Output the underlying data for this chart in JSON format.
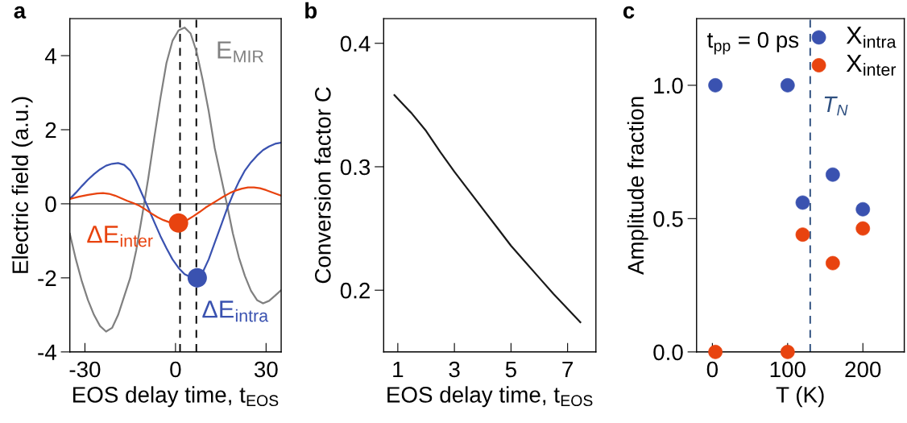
{
  "chart_data": [
    {
      "type": "line",
      "title": "a",
      "xlabel": "EOS delay time, t$_{EOS}$",
      "ylabel": "Electric field (a.u.)",
      "xlim": [
        -35,
        35
      ],
      "ylim": [
        -4,
        5
      ],
      "xticks": [
        -30,
        0,
        30
      ],
      "yticks": [
        -4,
        -2,
        0,
        2,
        4
      ],
      "grid": false,
      "legend": false,
      "series": [
        {
          "type": "line",
          "name": "E$_{MIR}$",
          "color": "#808080",
          "x": [
            -35,
            -33,
            -31,
            -29,
            -27,
            -25,
            -23,
            -21,
            -19,
            -17,
            -15,
            -13,
            -11,
            -9,
            -7,
            -5,
            -3,
            -1,
            1,
            3,
            5,
            7,
            9,
            11,
            13,
            15,
            17,
            19,
            21,
            23,
            25,
            27,
            29,
            31,
            33,
            35
          ],
          "values": [
            -0.81,
            -1.5,
            -2.1,
            -2.6,
            -3.0,
            -3.3,
            -3.45,
            -3.35,
            -3.0,
            -2.5,
            -2.0,
            -1.25,
            -0.3,
            0.7,
            1.8,
            2.85,
            3.8,
            4.4,
            4.68,
            4.76,
            4.6,
            4.1,
            3.35,
            2.5,
            1.5,
            0.75,
            0.0,
            -0.8,
            -1.45,
            -1.95,
            -2.35,
            -2.6,
            -2.69,
            -2.62,
            -2.48,
            -2.33
          ]
        },
        {
          "type": "line",
          "color": "#3a52b0",
          "x": [
            -35,
            -33,
            -31,
            -29,
            -27,
            -25,
            -23,
            -21,
            -19,
            -17,
            -15,
            -13,
            -11,
            -9,
            -7,
            -5,
            -3,
            -1,
            1,
            3,
            5,
            7,
            9,
            11,
            13,
            15,
            17,
            19,
            21,
            23,
            25,
            27,
            29,
            31,
            33,
            35
          ],
          "values": [
            0.13,
            0.3,
            0.48,
            0.65,
            0.8,
            0.93,
            1.03,
            1.08,
            1.1,
            1.05,
            0.9,
            0.62,
            0.25,
            -0.12,
            -0.5,
            -0.87,
            -1.2,
            -1.5,
            -1.73,
            -1.9,
            -1.98,
            -2.0,
            -1.85,
            -1.5,
            -1.05,
            -0.6,
            -0.15,
            0.25,
            0.6,
            0.9,
            1.12,
            1.3,
            1.45,
            1.55,
            1.62,
            1.65
          ]
        },
        {
          "type": "line",
          "color": "#e8430f",
          "x": [
            -35,
            -32,
            -29,
            -26,
            -24,
            -22,
            -20,
            -18,
            -16,
            -14,
            -12,
            -10,
            -8,
            -6,
            -4,
            -2,
            0,
            2,
            4,
            6,
            8,
            10,
            12,
            14,
            16,
            18,
            20,
            22,
            24,
            26,
            28,
            30,
            32,
            35
          ],
          "values": [
            0.13,
            0.19,
            0.24,
            0.28,
            0.29,
            0.27,
            0.22,
            0.15,
            0.08,
            0.02,
            -0.05,
            -0.15,
            -0.26,
            -0.36,
            -0.44,
            -0.5,
            -0.52,
            -0.5,
            -0.43,
            -0.33,
            -0.22,
            -0.1,
            0.0,
            0.1,
            0.2,
            0.29,
            0.36,
            0.41,
            0.44,
            0.44,
            0.42,
            0.37,
            0.31,
            0.22
          ]
        },
        {
          "type": "scatter",
          "name": "ΔE$_{inter}$",
          "color": "#e8430f",
          "x": [
            1.0
          ],
          "values": [
            -0.52
          ]
        },
        {
          "type": "scatter",
          "name": "ΔE$_{intra}$",
          "color": "#3a52b0",
          "x": [
            7.2
          ],
          "values": [
            -2.0
          ]
        }
      ],
      "ref_lines": [
        {
          "axis": "y",
          "value": 0,
          "color": "#808080",
          "line_style": "solid"
        },
        {
          "axis": "x",
          "value": 1.5,
          "color": "#000000",
          "line_style": "dashed"
        },
        {
          "axis": "x",
          "value": 6.9,
          "color": "#000000",
          "line_style": "dashed"
        }
      ]
    },
    {
      "type": "line",
      "title": "b",
      "xlabel": "EOS delay time, t$_{EOS}$",
      "ylabel": "Conversion factor C",
      "xlim": [
        0.5,
        8
      ],
      "ylim": [
        0.15,
        0.42
      ],
      "xticks": [
        1,
        3,
        5,
        7
      ],
      "yticks": [
        0.2,
        0.3,
        0.4
      ],
      "grid": false,
      "legend": false,
      "series": [
        {
          "type": "line",
          "color": "#1a1a1a",
          "x": [
            0.88,
            1.5,
            2,
            2.5,
            3,
            3.5,
            4,
            4.5,
            5,
            5.5,
            6,
            6.5,
            7,
            7.45
          ],
          "values": [
            0.358,
            0.343,
            0.329,
            0.312,
            0.296,
            0.281,
            0.266,
            0.251,
            0.236,
            0.223,
            0.21,
            0.197,
            0.185,
            0.174
          ]
        }
      ]
    },
    {
      "type": "scatter",
      "title": "c",
      "xlabel": "T (K)",
      "ylabel": "Amplitude fraction",
      "xlim": [
        -21,
        255
      ],
      "ylim": [
        0,
        1.25
      ],
      "xticks": [
        0,
        100,
        200
      ],
      "yticks": [
        {
          "value": 0,
          "label": "0.0"
        },
        {
          "value": 0.5,
          "label": "0.5"
        },
        {
          "value": 1,
          "label": "1.0"
        }
      ],
      "grid": false,
      "legend": "top right",
      "marker": "circle",
      "series": [
        {
          "name": "X$_{intra}$",
          "color": "#3a52b0",
          "x": [
            4,
            100,
            120,
            160,
            200
          ],
          "values": [
            1.0,
            1.0,
            0.56,
            0.665,
            0.535
          ]
        },
        {
          "name": "X$_{inter}$",
          "color": "#e8430f",
          "x": [
            4,
            100,
            120,
            160,
            200
          ],
          "values": [
            0,
            0,
            0.44,
            0.333,
            0.463
          ]
        }
      ],
      "ref_lines": [
        {
          "axis": "x",
          "value": 130,
          "label": "T$_{N}$",
          "color": "#2f5080",
          "line_style": "dashed"
        }
      ],
      "annotations": [
        "t$_{pp}$ = 0 ps"
      ]
    }
  ]
}
